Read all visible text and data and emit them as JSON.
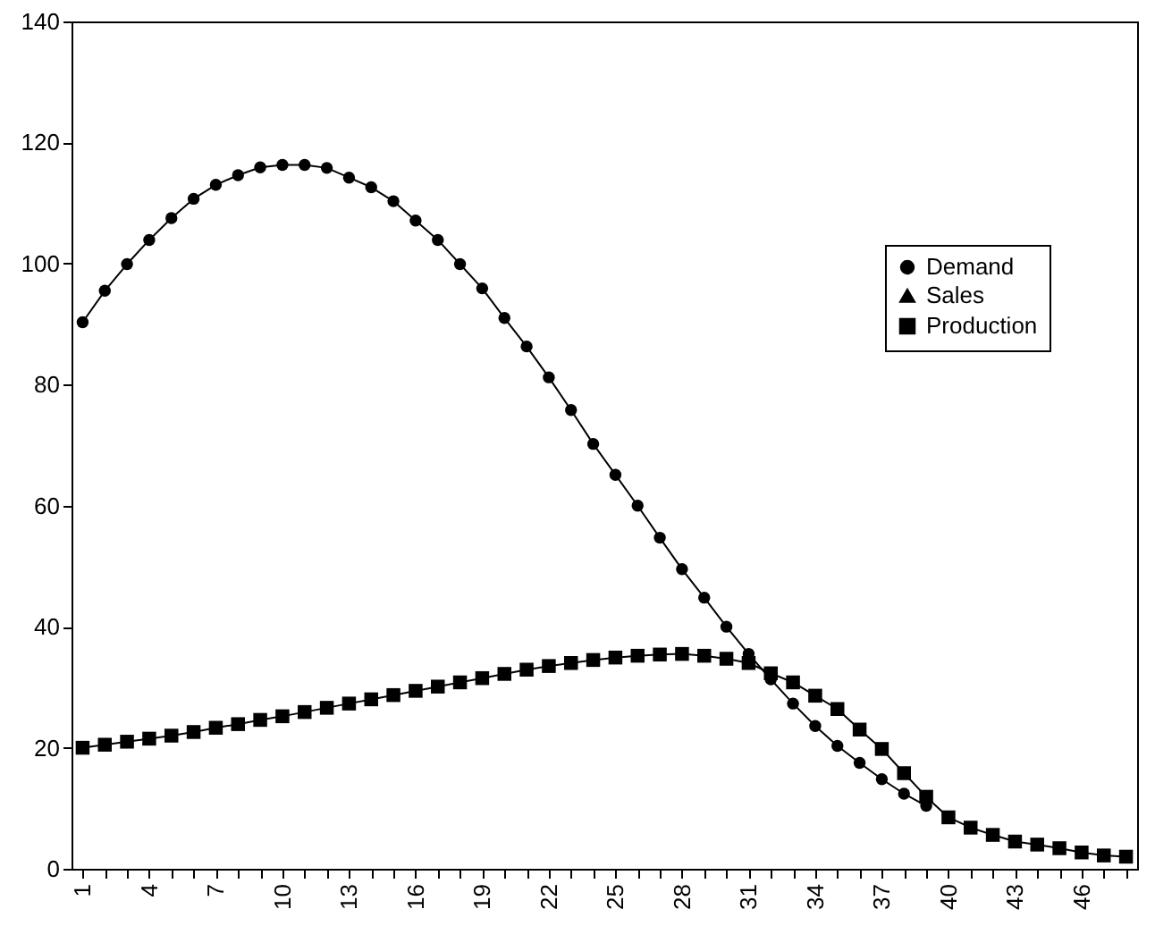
{
  "chart_data": {
    "type": "line",
    "categories": [
      "1",
      null,
      null,
      "4",
      null,
      null,
      "7",
      null,
      null,
      "10",
      null,
      null,
      "13",
      null,
      null,
      "16",
      null,
      null,
      "19",
      null,
      null,
      "22",
      null,
      null,
      "25",
      null,
      null,
      "28",
      null,
      null,
      "31",
      null,
      null,
      "34",
      null,
      null,
      "37",
      null,
      null,
      "40",
      null,
      null,
      "43",
      null,
      null,
      "46",
      null,
      null
    ],
    "series": [
      {
        "name": "Demand",
        "color": "#000000",
        "marker": "circle",
        "values": [
          90.3,
          95.5,
          99.9,
          103.9,
          107.5,
          110.7,
          113.0,
          114.6,
          115.9,
          116.3,
          116.3,
          115.8,
          114.2,
          112.6,
          110.3,
          107.1,
          103.9,
          99.9,
          95.9,
          91.0,
          86.3,
          81.2,
          75.8,
          70.2,
          65.1,
          60.0,
          54.7,
          49.5,
          44.8,
          40.0,
          35.5,
          31.3,
          27.3,
          23.6,
          20.3,
          17.5,
          14.8,
          12.4,
          10.4,
          null,
          null,
          null,
          null,
          null,
          null,
          null,
          null,
          null
        ]
      },
      {
        "name": "Sales",
        "color": "#000000",
        "marker": "triangle",
        "values": [
          null,
          null,
          null,
          null,
          null,
          null,
          null,
          null,
          null,
          null,
          null,
          null,
          null,
          null,
          null,
          null,
          null,
          null,
          null,
          null,
          null,
          null,
          null,
          null,
          null,
          null,
          null,
          null,
          null,
          null,
          null,
          null,
          null,
          null,
          null,
          null,
          null,
          null,
          null,
          null,
          null,
          null,
          null,
          null,
          null,
          null,
          null,
          null
        ]
      },
      {
        "name": "Production",
        "color": "#000000",
        "marker": "square",
        "values": [
          20.0,
          20.5,
          21.0,
          21.5,
          22.0,
          22.6,
          23.3,
          23.9,
          24.6,
          25.2,
          25.9,
          26.6,
          27.3,
          28.0,
          28.7,
          29.4,
          30.1,
          30.8,
          31.5,
          32.2,
          32.9,
          33.5,
          34.0,
          34.5,
          34.9,
          35.2,
          35.4,
          35.5,
          35.2,
          34.7,
          34.0,
          32.3,
          30.8,
          28.6,
          26.4,
          23.0,
          19.8,
          15.8,
          11.9,
          8.5,
          6.8,
          5.6,
          4.5,
          4.0,
          3.4,
          2.7,
          2.2,
          2.0
        ]
      }
    ],
    "ylim": [
      0,
      140
    ],
    "yticks": [
      0,
      20,
      40,
      60,
      80,
      100,
      120,
      140
    ],
    "legend": "right"
  }
}
